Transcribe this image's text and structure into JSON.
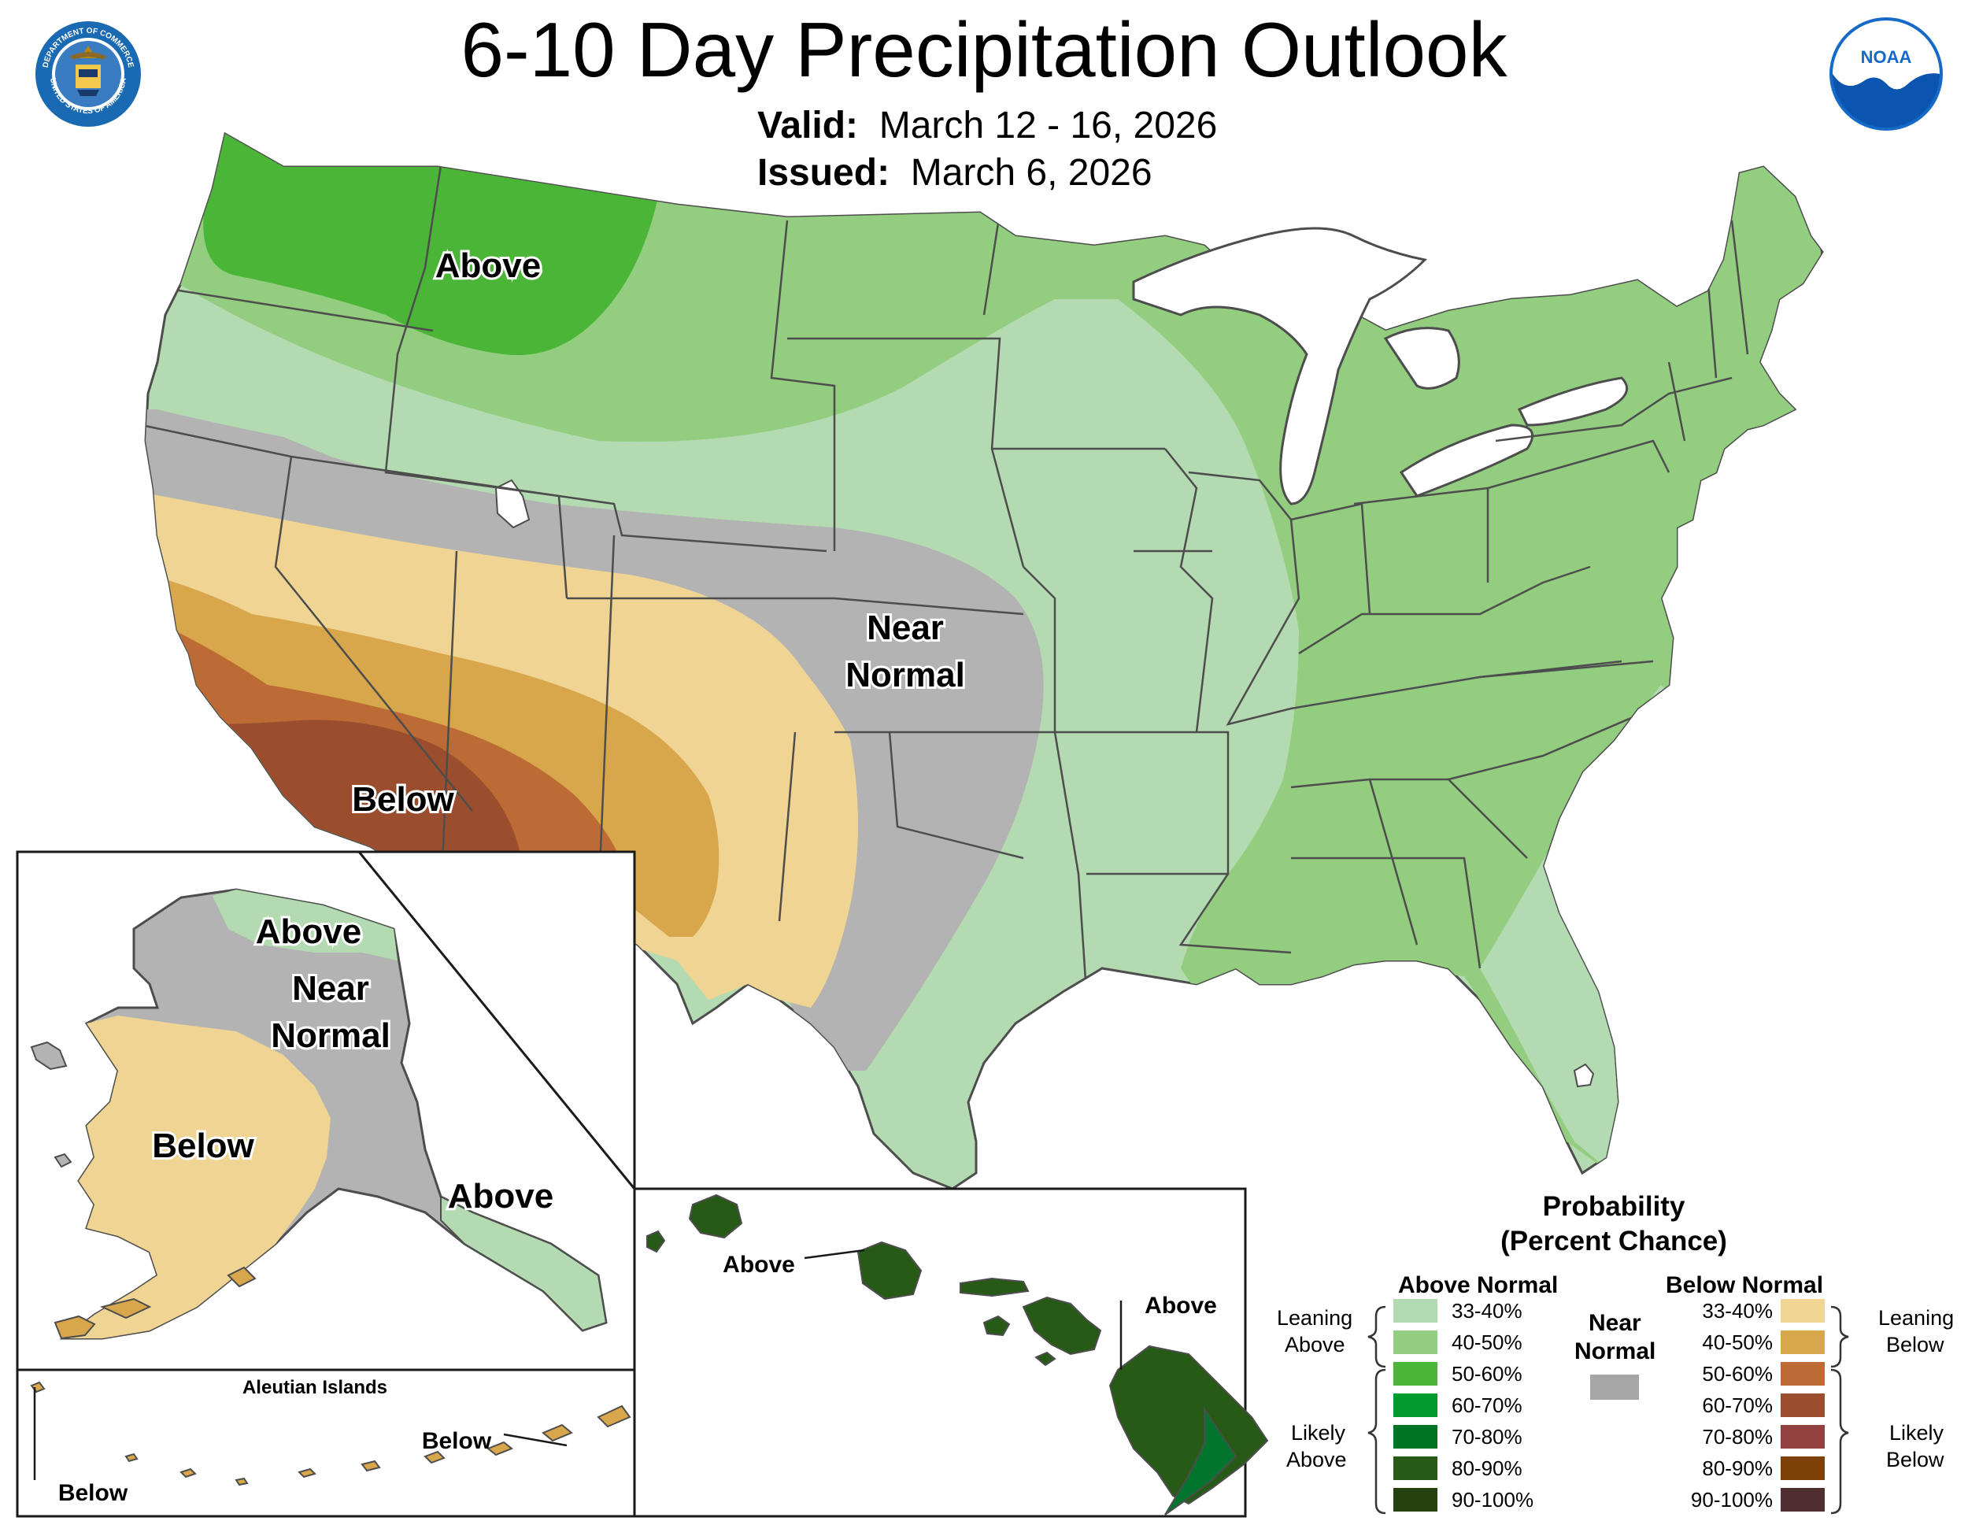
{
  "header": {
    "title": "6-10 Day Precipitation Outlook",
    "valid_label": "Valid:",
    "valid_value": "March 12 - 16, 2026",
    "issued_label": "Issued:",
    "issued_value": "March 6, 2026"
  },
  "logos": {
    "commerce_left": "DEPARTMENT OF COMMERCE",
    "commerce_right": "UNITED STATES OF AMERICA",
    "noaa": "NOAA"
  },
  "map_labels": {
    "conus_above": "Above",
    "conus_near_1": "Near",
    "conus_near_2": "Normal",
    "conus_below": "Below",
    "ak_above_north": "Above",
    "ak_near_1": "Near",
    "ak_near_2": "Normal",
    "ak_below": "Below",
    "ak_above_panhandle": "Above",
    "aleutian_title": "Aleutian Islands",
    "aleutian_below_left": "Below",
    "aleutian_below_right": "Below",
    "hi_above_oahu": "Above",
    "hi_above_big": "Above"
  },
  "legend": {
    "title_1": "Probability",
    "title_2": "(Percent Chance)",
    "above_header": "Above Normal",
    "below_header": "Below Normal",
    "near_1": "Near",
    "near_2": "Normal",
    "near_color": "#a6a6a6",
    "leaning_above_1": "Leaning",
    "leaning_above_2": "Above",
    "likely_above_1": "Likely",
    "likely_above_2": "Above",
    "leaning_below_1": "Leaning",
    "leaning_below_2": "Below",
    "likely_below_1": "Likely",
    "likely_below_2": "Below",
    "above_bins": [
      {
        "label": "33-40%",
        "color": "#b3dab0"
      },
      {
        "label": "40-50%",
        "color": "#93cd7f"
      },
      {
        "label": "50-60%",
        "color": "#4ab537"
      },
      {
        "label": "60-70%",
        "color": "#02992e"
      },
      {
        "label": "70-80%",
        "color": "#017423"
      },
      {
        "label": "80-90%",
        "color": "#285a17"
      },
      {
        "label": "90-100%",
        "color": "#254110"
      }
    ],
    "below_bins": [
      {
        "label": "33-40%",
        "color": "#f0d493"
      },
      {
        "label": "40-50%",
        "color": "#d8a64b"
      },
      {
        "label": "50-60%",
        "color": "#bb6b33"
      },
      {
        "label": "60-70%",
        "color": "#9b4e2e"
      },
      {
        "label": "70-80%",
        "color": "#93413f"
      },
      {
        "label": "80-90%",
        "color": "#7b4106"
      },
      {
        "label": "90-100%",
        "color": "#4f2f2f"
      }
    ]
  }
}
